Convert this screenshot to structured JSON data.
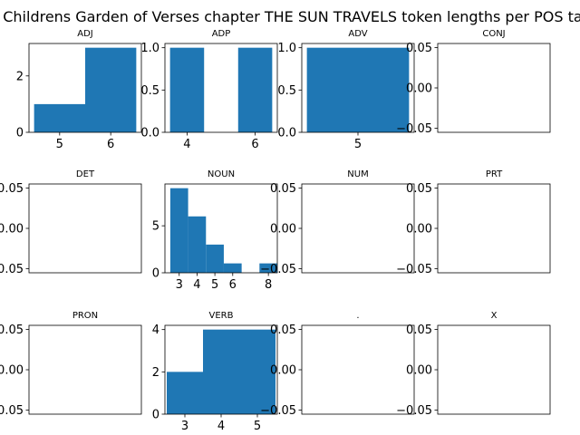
{
  "figure": {
    "title": "A Childrens Garden of Verses chapter THE SUN TRAVELS token lengths per POS tag"
  },
  "chart_data": [
    {
      "type": "bar",
      "title": "ADJ",
      "bar_color": "#1f77b4",
      "bars": [
        {
          "x0": 4.5,
          "x1": 5.5,
          "value": 1
        },
        {
          "x0": 5.5,
          "x1": 6.5,
          "value": 3
        }
      ],
      "xlim": [
        4.4,
        6.6
      ],
      "ylim": [
        0,
        3.15
      ],
      "xticks": [
        5,
        6
      ],
      "yticks": [
        0,
        2
      ],
      "xtick_labels": [
        "5",
        "6"
      ],
      "ytick_labels": [
        "0",
        "2"
      ]
    },
    {
      "type": "bar",
      "title": "ADP",
      "bar_color": "#1f77b4",
      "bars": [
        {
          "x0": 3.5,
          "x1": 4.5,
          "value": 1
        },
        {
          "x0": 5.5,
          "x1": 6.5,
          "value": 1
        }
      ],
      "xlim": [
        3.35,
        6.65
      ],
      "ylim": [
        0,
        1.05
      ],
      "xticks": [
        4,
        6
      ],
      "yticks": [
        0,
        0.5,
        1
      ],
      "xtick_labels": [
        "4",
        "6"
      ],
      "ytick_labels": [
        "0.0",
        "0.5",
        "1.0"
      ]
    },
    {
      "type": "bar",
      "title": "ADV",
      "bar_color": "#1f77b4",
      "bars": [
        {
          "x0": 4.5,
          "x1": 5.5,
          "value": 1
        }
      ],
      "xlim": [
        4.45,
        5.55
      ],
      "ylim": [
        0,
        1.05
      ],
      "xticks": [
        5
      ],
      "yticks": [
        0,
        0.5,
        1
      ],
      "xtick_labels": [
        "5"
      ],
      "ytick_labels": [
        "0.0",
        "0.5",
        "1.0"
      ]
    },
    {
      "type": "bar",
      "title": "CONJ",
      "bar_color": "#1f77b4",
      "bars": [],
      "xlim": [
        0,
        1
      ],
      "ylim": [
        -0.055,
        0.055
      ],
      "xticks": [],
      "yticks": [
        -0.05,
        0,
        0.05
      ],
      "xtick_labels": [],
      "ytick_labels": [
        "−0.05",
        "0.00",
        "0.05"
      ]
    },
    {
      "type": "bar",
      "title": "DET",
      "bar_color": "#1f77b4",
      "bars": [],
      "xlim": [
        0,
        1
      ],
      "ylim": [
        -0.055,
        0.055
      ],
      "xticks": [],
      "yticks": [
        -0.05,
        0,
        0.05
      ],
      "xtick_labels": [],
      "ytick_labels": [
        "−0.05",
        "0.00",
        "0.05"
      ]
    },
    {
      "type": "bar",
      "title": "NOUN",
      "bar_color": "#1f77b4",
      "bars": [
        {
          "x0": 2.5,
          "x1": 3.5,
          "value": 9
        },
        {
          "x0": 3.5,
          "x1": 4.5,
          "value": 6
        },
        {
          "x0": 4.5,
          "x1": 5.5,
          "value": 3
        },
        {
          "x0": 5.5,
          "x1": 6.5,
          "value": 1
        },
        {
          "x0": 7.5,
          "x1": 8.5,
          "value": 1
        }
      ],
      "xlim": [
        2.2,
        8.5
      ],
      "ylim": [
        0,
        9.45
      ],
      "xticks": [
        3,
        4,
        5,
        6,
        8
      ],
      "yticks": [
        0,
        5
      ],
      "xtick_labels": [
        "3",
        "4",
        "5",
        "6",
        "8"
      ],
      "ytick_labels": [
        "0",
        "5"
      ]
    },
    {
      "type": "bar",
      "title": "NUM",
      "bar_color": "#1f77b4",
      "bars": [],
      "xlim": [
        0,
        1
      ],
      "ylim": [
        -0.055,
        0.055
      ],
      "xticks": [],
      "yticks": [
        -0.05,
        0,
        0.05
      ],
      "xtick_labels": [],
      "ytick_labels": [
        "−0.05",
        "0.00",
        "0.05"
      ]
    },
    {
      "type": "bar",
      "title": "PRT",
      "bar_color": "#1f77b4",
      "bars": [],
      "xlim": [
        0,
        1
      ],
      "ylim": [
        -0.055,
        0.055
      ],
      "xticks": [],
      "yticks": [
        -0.05,
        0,
        0.05
      ],
      "xtick_labels": [],
      "ytick_labels": [
        "−0.05",
        "0.00",
        "0.05"
      ]
    },
    {
      "type": "bar",
      "title": "PRON",
      "bar_color": "#1f77b4",
      "bars": [],
      "xlim": [
        0,
        1
      ],
      "ylim": [
        -0.055,
        0.055
      ],
      "xticks": [],
      "yticks": [
        -0.05,
        0,
        0.05
      ],
      "xtick_labels": [],
      "ytick_labels": [
        "−0.05",
        "0.00",
        "0.05"
      ]
    },
    {
      "type": "bar",
      "title": "VERB",
      "bar_color": "#1f77b4",
      "bars": [
        {
          "x0": 2.5,
          "x1": 3.5,
          "value": 2
        },
        {
          "x0": 3.5,
          "x1": 4.5,
          "value": 4
        },
        {
          "x0": 4.5,
          "x1": 5.5,
          "value": 4
        }
      ],
      "xlim": [
        2.45,
        5.55
      ],
      "ylim": [
        0,
        4.2
      ],
      "xticks": [
        3,
        4,
        5
      ],
      "yticks": [
        0,
        2,
        4
      ],
      "xtick_labels": [
        "3",
        "4",
        "5"
      ],
      "ytick_labels": [
        "0",
        "2",
        "4"
      ]
    },
    {
      "type": "bar",
      "title": ".",
      "bar_color": "#1f77b4",
      "bars": [],
      "xlim": [
        0,
        1
      ],
      "ylim": [
        -0.055,
        0.055
      ],
      "xticks": [],
      "yticks": [
        -0.05,
        0,
        0.05
      ],
      "xtick_labels": [],
      "ytick_labels": [
        "−0.05",
        "0.00",
        "0.05"
      ]
    },
    {
      "type": "bar",
      "title": "X",
      "bar_color": "#1f77b4",
      "bars": [],
      "xlim": [
        0,
        1
      ],
      "ylim": [
        -0.055,
        0.055
      ],
      "xticks": [],
      "yticks": [
        -0.05,
        0,
        0.05
      ],
      "xtick_labels": [],
      "ytick_labels": [
        "−0.05",
        "0.00",
        "0.05"
      ]
    }
  ]
}
